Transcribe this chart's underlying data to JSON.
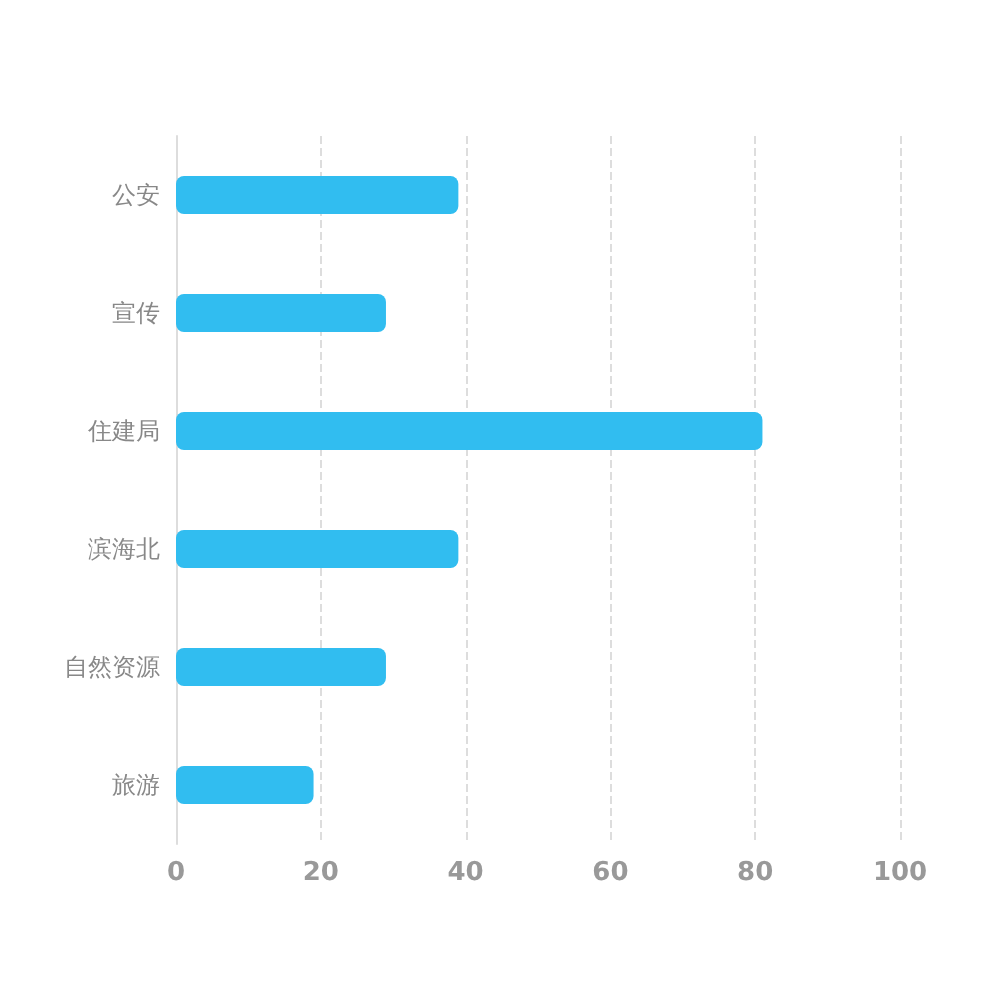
{
  "chart_data": {
    "type": "bar",
    "orientation": "horizontal",
    "categories": [
      "公安",
      "宣传",
      "住建局",
      "滨海北",
      "自然资源",
      "旅游"
    ],
    "values": [
      39,
      29,
      81,
      39,
      29,
      19
    ],
    "color": "#31bdf0",
    "xlim": [
      0,
      100
    ],
    "xticks": [
      0,
      20,
      40,
      60,
      80,
      100
    ],
    "grid": "x"
  }
}
